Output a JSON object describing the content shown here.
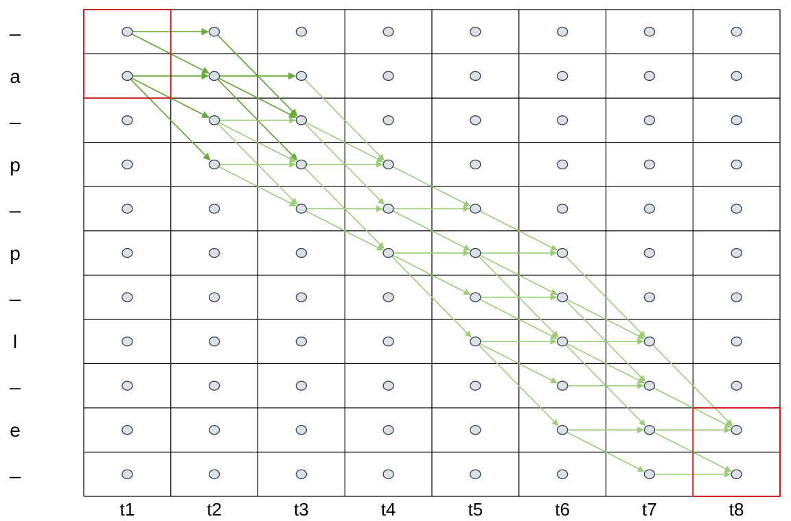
{
  "row_labels": [
    "_",
    "a",
    "_",
    "p",
    "_",
    "p",
    "_",
    "l",
    "_",
    "e",
    "_"
  ],
  "col_labels": [
    "t1",
    "t2",
    "t3",
    "t4",
    "t5",
    "t6",
    "t7",
    "t8"
  ],
  "colors": {
    "grid": "#000000",
    "node_fill": "#dde0e4",
    "node_stroke": "#3e4a5a",
    "arrow_dark": "#6aaa3f",
    "arrow_light": "#9ccc79",
    "highlight": "#cc2222"
  },
  "highlights": [
    {
      "col_start": 0,
      "col_end": 0,
      "row_start": 0,
      "row_end": 1
    },
    {
      "col_start": 7,
      "col_end": 7,
      "row_start": 9,
      "row_end": 10
    }
  ],
  "edges": [
    [
      0,
      0,
      0
    ],
    [
      0,
      0,
      1
    ],
    [
      0,
      1,
      1
    ],
    [
      0,
      1,
      2
    ],
    [
      0,
      1,
      3
    ],
    [
      1,
      0,
      2
    ],
    [
      1,
      1,
      1
    ],
    [
      1,
      1,
      2
    ],
    [
      1,
      1,
      3
    ],
    [
      1,
      2,
      2
    ],
    [
      1,
      2,
      3
    ],
    [
      1,
      2,
      4
    ],
    [
      1,
      3,
      3
    ],
    [
      1,
      3,
      4
    ],
    [
      2,
      1,
      3
    ],
    [
      2,
      2,
      3
    ],
    [
      2,
      2,
      4
    ],
    [
      2,
      3,
      3
    ],
    [
      2,
      3,
      5
    ],
    [
      2,
      4,
      4
    ],
    [
      2,
      4,
      5
    ],
    [
      3,
      3,
      4
    ],
    [
      3,
      4,
      4
    ],
    [
      3,
      4,
      5
    ],
    [
      3,
      5,
      5
    ],
    [
      3,
      5,
      6
    ],
    [
      3,
      5,
      7
    ],
    [
      4,
      4,
      5
    ],
    [
      4,
      5,
      5
    ],
    [
      4,
      5,
      6
    ],
    [
      4,
      5,
      7
    ],
    [
      4,
      6,
      6
    ],
    [
      4,
      6,
      7
    ],
    [
      4,
      7,
      7
    ],
    [
      4,
      7,
      8
    ],
    [
      4,
      7,
      9
    ],
    [
      5,
      5,
      7
    ],
    [
      5,
      6,
      7
    ],
    [
      5,
      6,
      8
    ],
    [
      5,
      7,
      7
    ],
    [
      5,
      7,
      8
    ],
    [
      5,
      7,
      9
    ],
    [
      5,
      8,
      8
    ],
    [
      5,
      9,
      9
    ],
    [
      5,
      9,
      10
    ],
    [
      6,
      7,
      9
    ],
    [
      6,
      8,
      9
    ],
    [
      6,
      9,
      9
    ],
    [
      6,
      9,
      10
    ],
    [
      6,
      10,
      10
    ]
  ]
}
